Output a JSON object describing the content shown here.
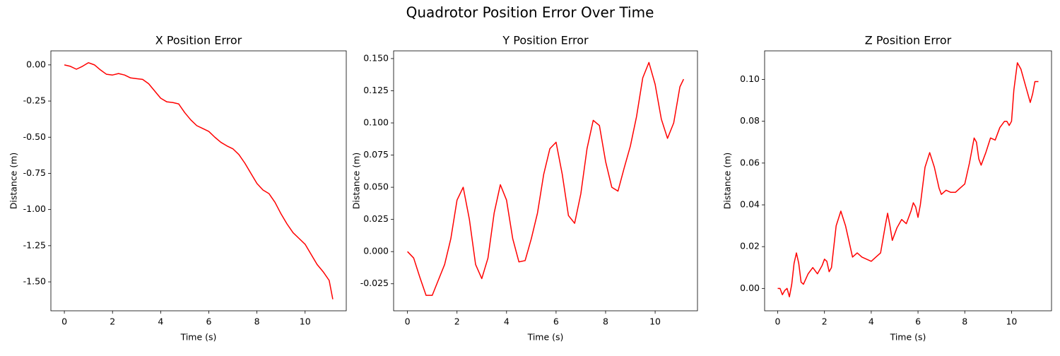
{
  "title": "Quadrotor Position Error Over Time",
  "chart_data": [
    {
      "type": "line",
      "title": "X Position Error",
      "x_label": "Time (s)",
      "y_label": "Distance (m)",
      "color": "#ff0000",
      "grid": false,
      "x": [
        0,
        0.25,
        0.5,
        0.75,
        1,
        1.25,
        1.5,
        1.75,
        2,
        2.25,
        2.5,
        2.75,
        3,
        3.25,
        3.5,
        3.75,
        4,
        4.25,
        4.5,
        4.75,
        5,
        5.25,
        5.5,
        5.75,
        6,
        6.25,
        6.5,
        6.75,
        7,
        7.25,
        7.5,
        7.75,
        8,
        8.25,
        8.5,
        8.75,
        9,
        9.25,
        9.5,
        9.75,
        10,
        10.25,
        10.5,
        10.75,
        11,
        11.15
      ],
      "values": [
        0,
        -0.01,
        -0.03,
        -0.01,
        0.015,
        0,
        -0.035,
        -0.065,
        -0.07,
        -0.06,
        -0.07,
        -0.09,
        -0.095,
        -0.1,
        -0.13,
        -0.18,
        -0.23,
        -0.255,
        -0.26,
        -0.27,
        -0.33,
        -0.38,
        -0.42,
        -0.44,
        -0.46,
        -0.5,
        -0.535,
        -0.56,
        -0.58,
        -0.62,
        -0.68,
        -0.75,
        -0.82,
        -0.865,
        -0.89,
        -0.95,
        -1.03,
        -1.1,
        -1.16,
        -1.2,
        -1.24,
        -1.31,
        -1.38,
        -1.43,
        -1.49,
        -1.62
      ],
      "xlim": [
        -0.56,
        11.71
      ],
      "xticks": [
        0,
        2,
        4,
        6,
        8,
        10
      ],
      "ylim": [
        -1.7,
        0.097
      ],
      "yticks": [
        {
          "value": 0,
          "label": "0.00"
        },
        -0.25,
        {
          "value": -0.5,
          "label": "-0.50"
        },
        -0.75,
        {
          "value": -1,
          "label": "-1.00"
        },
        -1.25,
        {
          "value": -1.5,
          "label": "-1.50"
        }
      ]
    },
    {
      "type": "line",
      "title": "Y Position Error",
      "x_label": "Time (s)",
      "y_label": "Distance (m)",
      "color": "#ff0000",
      "grid": false,
      "x": [
        0,
        0.25,
        0.5,
        0.75,
        1,
        1.25,
        1.5,
        1.75,
        2,
        2.25,
        2.5,
        2.75,
        3,
        3.25,
        3.5,
        3.75,
        4,
        4.25,
        4.5,
        4.75,
        5,
        5.25,
        5.5,
        5.75,
        6,
        6.25,
        6.5,
        6.75,
        7,
        7.25,
        7.5,
        7.75,
        8,
        8.25,
        8.5,
        8.75,
        9,
        9.25,
        9.5,
        9.75,
        10,
        10.25,
        10.5,
        10.75,
        11,
        11.15
      ],
      "values": [
        0,
        -0.005,
        -0.02,
        -0.034,
        -0.034,
        -0.022,
        -0.01,
        0.01,
        0.04,
        0.05,
        0.025,
        -0.01,
        -0.021,
        -0.005,
        0.03,
        0.052,
        0.04,
        0.01,
        -0.008,
        -0.007,
        0.01,
        0.03,
        0.06,
        0.08,
        0.085,
        0.06,
        0.028,
        0.022,
        0.045,
        0.08,
        0.102,
        0.098,
        0.07,
        0.05,
        0.047,
        0.065,
        0.082,
        0.105,
        0.135,
        0.147,
        0.13,
        0.103,
        0.088,
        0.1,
        0.128,
        0.134
      ],
      "xlim": [
        -0.56,
        11.71
      ],
      "xticks": [
        0,
        2,
        4,
        6,
        8,
        10
      ],
      "ylim": [
        -0.046,
        0.156
      ],
      "yticks": [
        -0.025,
        {
          "value": 0,
          "label": "0.000"
        },
        0.025,
        {
          "value": 0.05,
          "label": "0.050"
        },
        0.075,
        {
          "value": 0.1,
          "label": "0.100"
        },
        0.125,
        {
          "value": 0.15,
          "label": "0.150"
        }
      ]
    },
    {
      "type": "line",
      "title": "Z Position Error",
      "x_label": "Time (s)",
      "y_label": "Distance (m)",
      "color": "#ff0000",
      "grid": false,
      "x": [
        0,
        0.1,
        0.2,
        0.3,
        0.4,
        0.5,
        0.6,
        0.7,
        0.8,
        0.9,
        1.0,
        1.1,
        1.3,
        1.5,
        1.7,
        1.9,
        2.0,
        2.1,
        2.2,
        2.3,
        2.5,
        2.7,
        2.9,
        3.1,
        3.2,
        3.4,
        3.6,
        3.8,
        4.0,
        4.2,
        4.4,
        4.6,
        4.7,
        4.8,
        4.9,
        5.1,
        5.3,
        5.5,
        5.7,
        5.8,
        5.9,
        6.0,
        6.1,
        6.3,
        6.5,
        6.7,
        6.9,
        7.0,
        7.2,
        7.4,
        7.6,
        7.8,
        8.0,
        8.2,
        8.4,
        8.5,
        8.6,
        8.7,
        8.9,
        9.1,
        9.3,
        9.5,
        9.7,
        9.8,
        9.9,
        10.0,
        10.1,
        10.25,
        10.4,
        10.6,
        10.8,
        10.9,
        11.0,
        11.15
      ],
      "values": [
        0,
        0,
        -0.003,
        -0.001,
        0,
        -0.004,
        0.002,
        0.012,
        0.017,
        0.012,
        0.003,
        0.002,
        0.007,
        0.01,
        0.007,
        0.011,
        0.014,
        0.013,
        0.008,
        0.01,
        0.03,
        0.037,
        0.03,
        0.02,
        0.015,
        0.017,
        0.015,
        0.014,
        0.013,
        0.015,
        0.017,
        0.03,
        0.036,
        0.03,
        0.023,
        0.029,
        0.033,
        0.031,
        0.037,
        0.041,
        0.039,
        0.034,
        0.04,
        0.058,
        0.065,
        0.058,
        0.048,
        0.045,
        0.047,
        0.046,
        0.046,
        0.048,
        0.05,
        0.06,
        0.072,
        0.07,
        0.062,
        0.059,
        0.065,
        0.072,
        0.071,
        0.077,
        0.08,
        0.08,
        0.078,
        0.08,
        0.095,
        0.108,
        0.105,
        0.097,
        0.089,
        0.093,
        0.099,
        0.099
      ],
      "xlim": [
        -0.56,
        11.71
      ],
      "xticks": [
        0,
        2,
        4,
        6,
        8,
        10
      ],
      "ylim": [
        -0.0107,
        0.1137
      ],
      "yticks": [
        {
          "value": 0,
          "label": "0.00"
        },
        0.02,
        0.04,
        0.06,
        0.08,
        {
          "value": 0.1,
          "label": "0.10"
        }
      ]
    }
  ]
}
